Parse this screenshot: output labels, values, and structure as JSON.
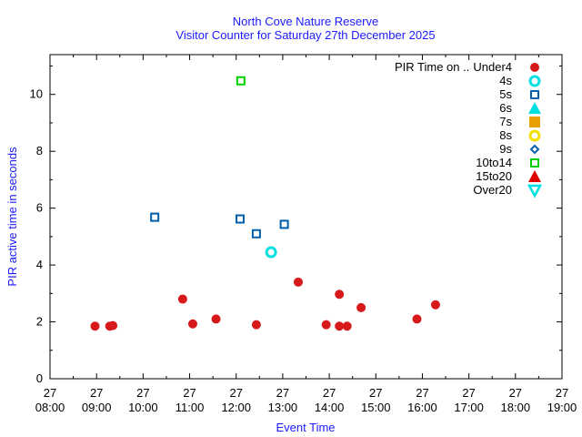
{
  "chart_data": {
    "type": "scatter",
    "title": "North Cove Nature Reserve",
    "subtitle": "Visitor Counter for Saturday 27th December 2025",
    "xlabel": "Event Time",
    "ylabel": "PIR active time in seconds",
    "xlim": [
      "08:00",
      "19:00"
    ],
    "ylim": [
      0,
      11.4
    ],
    "xticks": [
      {
        "day": "27",
        "time": "08:00"
      },
      {
        "day": "27",
        "time": "09:00"
      },
      {
        "day": "27",
        "time": "10:00"
      },
      {
        "day": "27",
        "time": "11:00"
      },
      {
        "day": "27",
        "time": "12:00"
      },
      {
        "day": "27",
        "time": "13:00"
      },
      {
        "day": "27",
        "time": "14:00"
      },
      {
        "day": "27",
        "time": "15:00"
      },
      {
        "day": "27",
        "time": "16:00"
      },
      {
        "day": "27",
        "time": "17:00"
      },
      {
        "day": "27",
        "time": "18:00"
      },
      {
        "day": "27",
        "time": "19:00"
      }
    ],
    "yticks": [
      0,
      2,
      4,
      6,
      8,
      10
    ],
    "grid": false,
    "legend_position": "top-right",
    "legend_title": "PIR Time on ..",
    "series": [
      {
        "name": "Under4",
        "marker": "filled-circle",
        "color": "#d7191c",
        "points": [
          [
            "08:58",
            1.85
          ],
          [
            "09:17",
            1.85
          ],
          [
            "09:21",
            1.87
          ],
          [
            "10:51",
            2.8
          ],
          [
            "11:04",
            1.93
          ],
          [
            "11:34",
            2.1
          ],
          [
            "12:26",
            1.9
          ],
          [
            "13:20",
            3.4
          ],
          [
            "13:56",
            1.9
          ],
          [
            "14:13",
            2.97
          ],
          [
            "14:13",
            1.85
          ],
          [
            "14:23",
            1.85
          ],
          [
            "14:41",
            2.5
          ],
          [
            "15:53",
            2.1
          ],
          [
            "16:17",
            2.6
          ]
        ]
      },
      {
        "name": "4s",
        "marker": "open-circle",
        "color": "#00e0e0",
        "points": [
          [
            "12:45",
            4.45
          ]
        ]
      },
      {
        "name": "5s",
        "marker": "open-square",
        "color": "#0060ad",
        "points": [
          [
            "10:15",
            5.68
          ],
          [
            "12:05",
            5.62
          ],
          [
            "12:26",
            5.1
          ],
          [
            "13:02",
            5.43
          ]
        ]
      },
      {
        "name": "6s",
        "marker": "filled-triangle-up",
        "color": "#00e0e0",
        "points": []
      },
      {
        "name": "7s",
        "marker": "filled-square",
        "color": "#e6a000",
        "points": []
      },
      {
        "name": "8s",
        "marker": "open-circle",
        "color": "#f0e000",
        "points": []
      },
      {
        "name": "9s",
        "marker": "open-diamond",
        "color": "#0060ad",
        "points": []
      },
      {
        "name": "10to14",
        "marker": "open-square",
        "color": "#00d000",
        "points": [
          [
            "12:06",
            10.48
          ]
        ]
      },
      {
        "name": "15to20",
        "marker": "filled-triangle-up",
        "color": "#e00000",
        "points": []
      },
      {
        "name": "Over20",
        "marker": "open-triangle-down",
        "color": "#00e0e0",
        "points": []
      }
    ]
  },
  "colors": {
    "title": "#1a1aff",
    "axis_label": "#1a1aff",
    "text": "#000000",
    "frame": "#000000"
  }
}
